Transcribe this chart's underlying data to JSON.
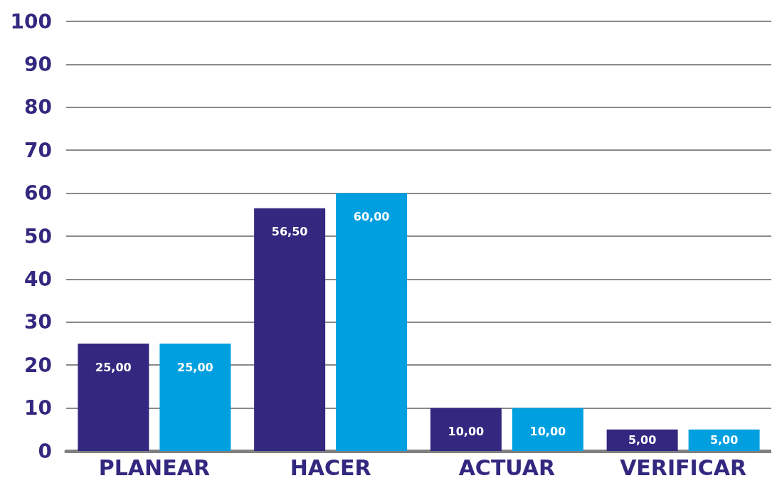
{
  "chart_data": {
    "type": "bar",
    "categories": [
      "PLANEAR",
      "HACER",
      "ACTUAR",
      "VERIFICAR"
    ],
    "series": [
      {
        "color": "#32287f",
        "values": [
          25,
          56.5,
          10,
          5
        ],
        "value_labels": [
          "25,00",
          "56,50",
          "10,00",
          "5,00"
        ]
      },
      {
        "color": "#00a0e0",
        "values": [
          25,
          60,
          10,
          5
        ],
        "value_labels": [
          "25,00",
          "60,00",
          "10,00",
          "5,00"
        ]
      }
    ],
    "ylim": [
      0,
      100
    ],
    "yticks": [
      0,
      10,
      20,
      30,
      40,
      50,
      60,
      70,
      80,
      90,
      100
    ],
    "grid": "y"
  }
}
